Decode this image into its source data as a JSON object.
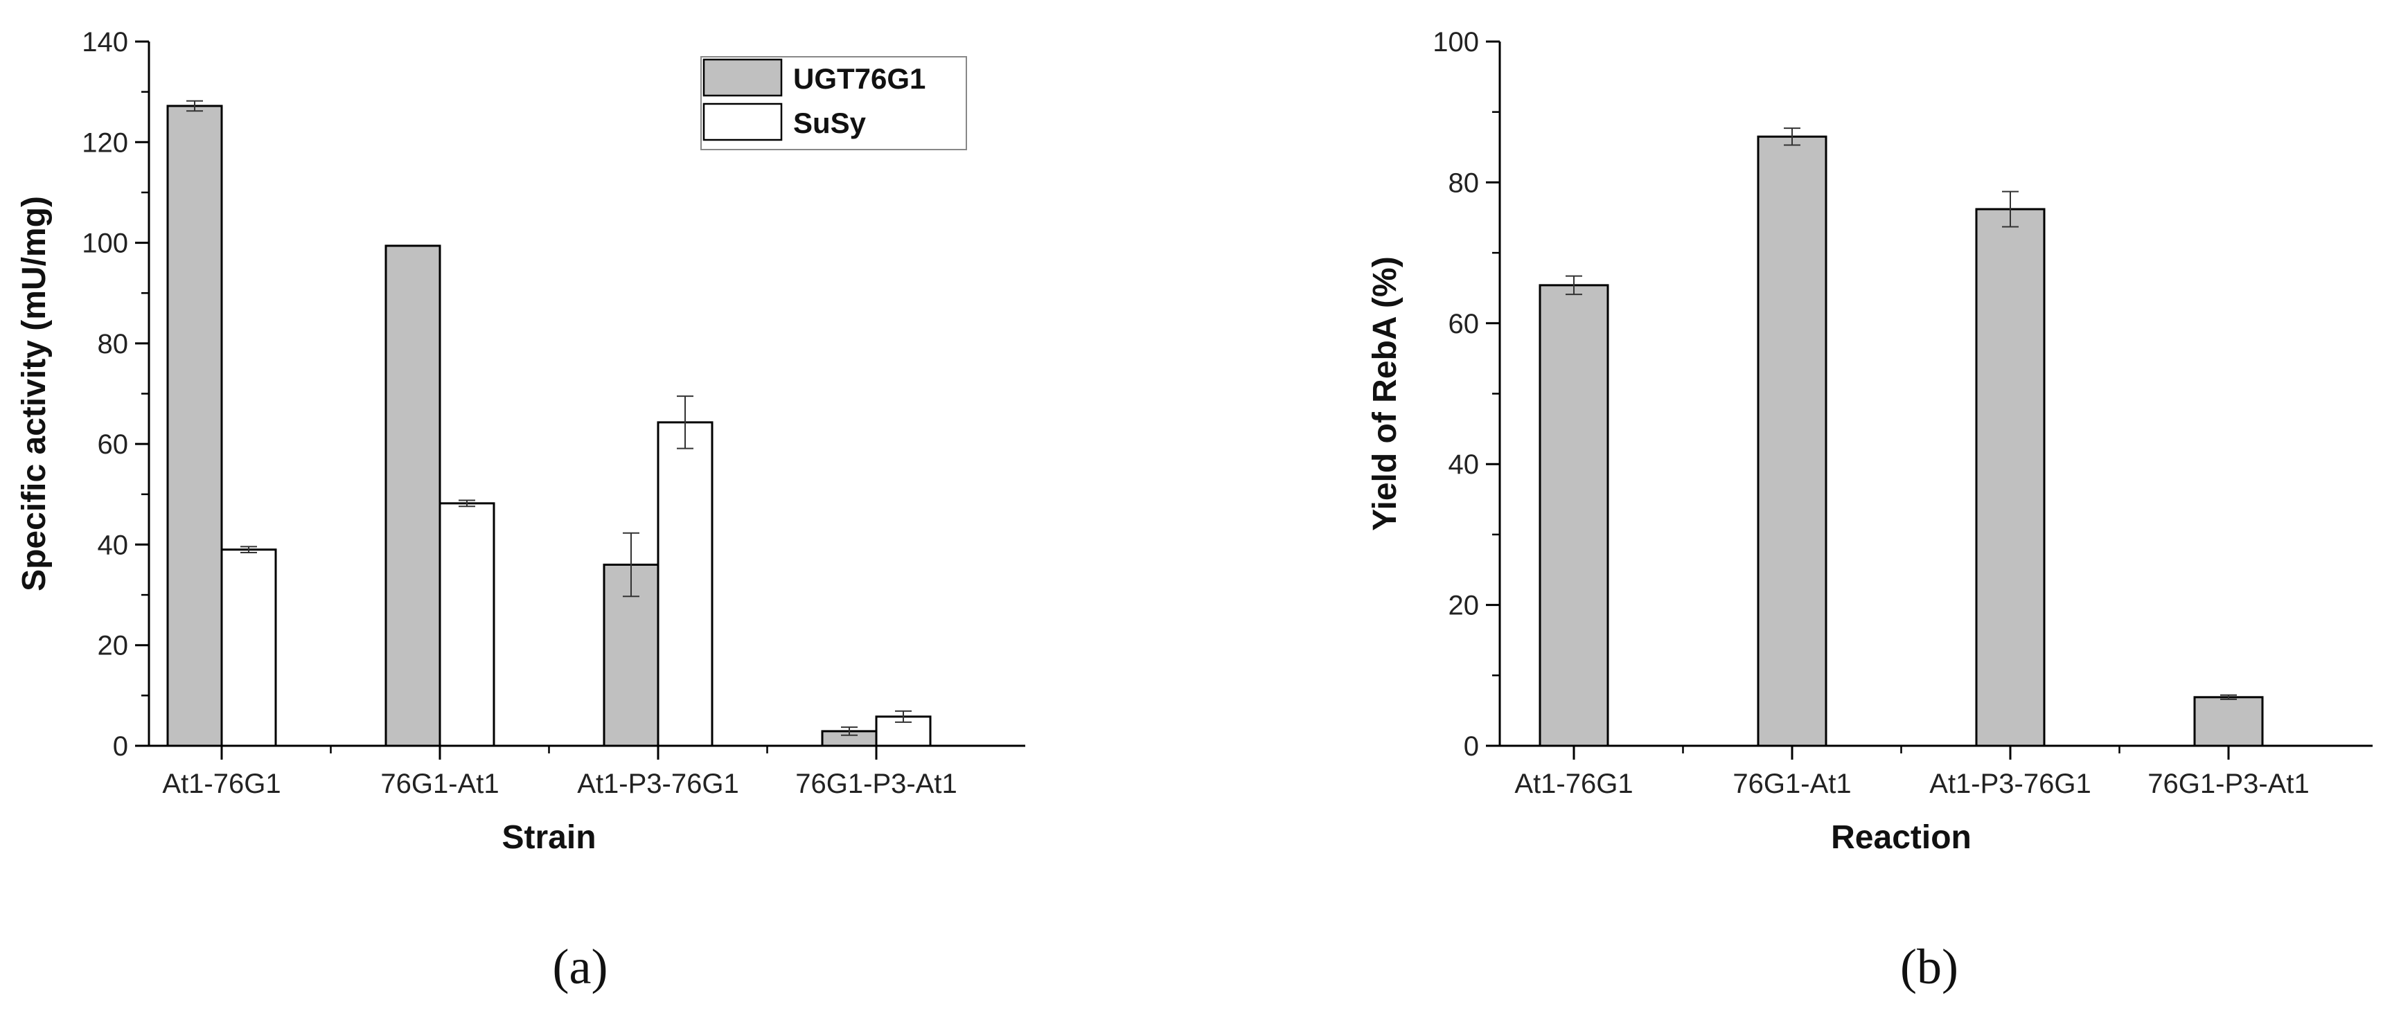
{
  "colors": {
    "bar_gray": "#c0c0c0",
    "bar_white": "#ffffff",
    "stroke": "#000000"
  },
  "chart_data": [
    {
      "type": "bar",
      "panel_label": "(a)",
      "xlabel": "Strain",
      "ylabel": "Specific activity (mU/mg)",
      "ylim": [
        0,
        140
      ],
      "yticks": [
        "0",
        "20",
        "40",
        "60",
        "80",
        "100",
        "120",
        "140"
      ],
      "categories": [
        "At1-76G1",
        "76G1-At1",
        "At1-P3-76G1",
        "76G1-P3-At1"
      ],
      "legend_position": "top-right",
      "series": [
        {
          "name": "UGT76G1",
          "color": "#c0c0c0",
          "values": [
            127.2,
            99.4,
            36,
            2.9
          ],
          "errors": [
            1.0,
            0,
            6.3,
            0.8
          ]
        },
        {
          "name": "SuSy",
          "color": "#ffffff",
          "values": [
            39.0,
            48.2,
            64.3,
            5.8
          ],
          "errors": [
            0.6,
            0.6,
            5.2,
            1.1
          ]
        }
      ]
    },
    {
      "type": "bar",
      "panel_label": "(b)",
      "xlabel": "Reaction",
      "ylabel": "Yield of RebA (%)",
      "ylim": [
        0,
        100
      ],
      "yticks": [
        "0",
        "20",
        "40",
        "60",
        "80",
        "100"
      ],
      "categories": [
        "At1-76G1",
        "76G1-At1",
        "At1-P3-76G1",
        "76G1-P3-At1"
      ],
      "series": [
        {
          "name": "",
          "color": "#c0c0c0",
          "values": [
            65.4,
            86.5,
            76.2,
            6.9
          ],
          "errors": [
            1.3,
            1.2,
            2.5,
            0.3
          ]
        }
      ]
    }
  ]
}
